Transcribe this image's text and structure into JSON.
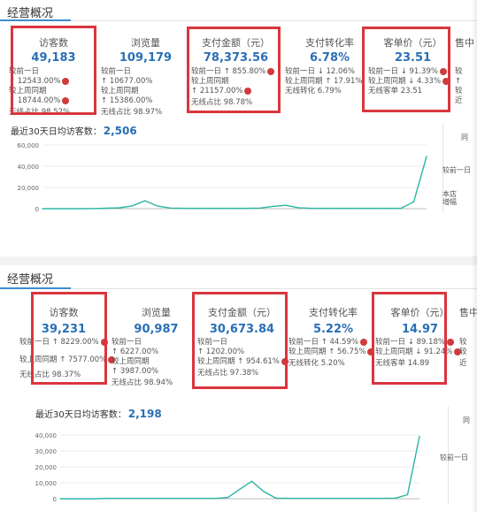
{
  "panels": [
    {
      "title": "经营概况",
      "metrics": [
        {
          "label": "访客数",
          "value": "49,183",
          "rows": [
            "较前一日",
            "↑ 12543.00%",
            "较上周同期",
            "↑ 18744.00%",
            "无线占比    98.52%"
          ]
        },
        {
          "label": "浏览量",
          "value": "109,179",
          "rows": [
            "较前一日",
            "↑ 10677.00%",
            "较上周同期",
            "↑ 15386.00%",
            "无线占比    98.97%"
          ]
        },
        {
          "label": "支付金额（元）",
          "value": "78,373.56",
          "rows": [
            "较前一日   ↑ 855.80%",
            "较上周同期",
            "↑ 21157.00%",
            "无线占比    98.78%"
          ]
        },
        {
          "label": "支付转化率",
          "value": "6.78%",
          "rows": [
            "较前一日   ↓ 12.06%",
            "较上周同期 ↑ 17.91%",
            "无线转化   6.79%"
          ]
        },
        {
          "label": "客单价（元）",
          "value": "23.51",
          "rows": [
            "较前一日   ↓ 91.39%",
            "较上周同期 ↓ 4.33%",
            "无线客单    23.51"
          ]
        },
        {
          "label": "售中",
          "value": "",
          "rows": [
            "较",
            "↑",
            "较",
            "近"
          ]
        }
      ],
      "avg_label": "最近30天日均访客数：",
      "avg_value": "2,506",
      "side": [
        "同",
        "较前一日",
        "本店",
        "增幅"
      ]
    },
    {
      "title": "经营概况",
      "metrics": [
        {
          "label": "访客数",
          "value": "39,231",
          "rows": [
            "较前一日  ↑ 8229.00%",
            "较上周同期 ↑ 7577.00%",
            "无线占比    98.37%"
          ]
        },
        {
          "label": "浏览量",
          "value": "90,987",
          "rows": [
            "较前一日",
            "↑ 6227.00%",
            "较上周同期",
            "↑ 3987.00%",
            "无线占比    98.94%"
          ]
        },
        {
          "label": "支付金额（元）",
          "value": "30,673.84",
          "rows": [
            "较前一日",
            "↑ 1202.00%",
            "较上周同期 ↑ 954.61%",
            "无线占比    97.38%"
          ]
        },
        {
          "label": "支付转化率",
          "value": "5.22%",
          "rows": [
            "较前一日   ↑ 44.59%",
            "较上周同期 ↑ 56.75%",
            "无线转化    5.20%"
          ]
        },
        {
          "label": "客单价（元）",
          "value": "14.97",
          "rows": [
            "较前一日   ↓ 89.18%",
            "较上周同期 ↓ 91.24%",
            "无线客单    14.89"
          ]
        },
        {
          "label": "售中",
          "value": "",
          "rows": [
            "较",
            "较",
            "近"
          ]
        }
      ],
      "avg_label": "最近30天日均访客数：",
      "avg_value": "2,198",
      "side": [
        "同",
        "较前一日"
      ]
    }
  ],
  "chart_data": [
    {
      "type": "line",
      "ylim": [
        0,
        60000
      ],
      "yticks": [
        "60,000",
        "40,000",
        "20,000",
        "0"
      ],
      "y": [
        0,
        0,
        0,
        0,
        200,
        400,
        800,
        2600,
        7500,
        2400,
        600,
        300,
        300,
        300,
        300,
        300,
        300,
        600,
        2200,
        3200,
        900,
        300,
        300,
        300,
        300,
        300,
        300,
        300,
        300,
        6500,
        49183
      ],
      "color": "#2bb5a5"
    },
    {
      "type": "line",
      "ylim": [
        0,
        40000
      ],
      "yticks": [
        "40,000",
        "30,000",
        "20,000",
        "10,000",
        "0"
      ],
      "y": [
        0,
        0,
        0,
        0,
        200,
        200,
        200,
        200,
        200,
        200,
        200,
        200,
        200,
        200,
        800,
        6000,
        11000,
        4500,
        400,
        200,
        200,
        200,
        200,
        200,
        200,
        200,
        200,
        200,
        400,
        2500,
        39231
      ],
      "color": "#2bb5a5"
    }
  ]
}
